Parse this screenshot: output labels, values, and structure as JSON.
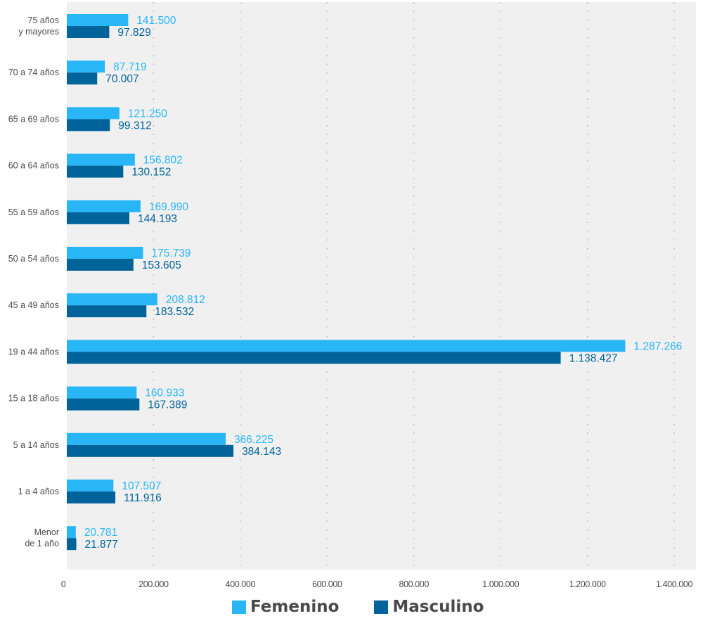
{
  "chart_data": {
    "type": "bar",
    "orientation": "horizontal",
    "title": "",
    "xlabel": "",
    "ylabel": "",
    "categories": [
      "75 años\ny mayores",
      "70 a 74 años",
      "65 a 69 años",
      "60 a 64 años",
      "55 a 59 años",
      "50 a 54 años",
      "45 a 49 años",
      "19 a 44 años",
      "15 a 18 años",
      "5 a 14 años",
      "1 a 4 años",
      "Menor\nde 1 año"
    ],
    "series": [
      {
        "name": "Femenino",
        "color": "#29b6f6",
        "values": [
          141500,
          87719,
          121250,
          156802,
          169990,
          175739,
          208812,
          1287266,
          160933,
          366225,
          107507,
          20781
        ],
        "labels": [
          "141.500",
          "87.719",
          "121.250",
          "156.802",
          "169.990",
          "175.739",
          "208.812",
          "1.287.266",
          "160.933",
          "366.225",
          "107.507",
          "20.781"
        ]
      },
      {
        "name": "Masculino",
        "color": "#00639a",
        "values": [
          97829,
          70007,
          99312,
          130152,
          144193,
          153605,
          183532,
          1138427,
          167389,
          384143,
          111916,
          21877
        ],
        "labels": [
          "97.829",
          "70.007",
          "99.312",
          "130.152",
          "144.193",
          "153.605",
          "183.532",
          "1.138.427",
          "167.389",
          "384.143",
          "111.916",
          "21.877"
        ]
      }
    ],
    "xlim": [
      0,
      1400000
    ],
    "xticks": [
      0,
      200000,
      400000,
      600000,
      800000,
      1000000,
      1200000,
      1400000
    ],
    "xtick_labels": [
      "0",
      "200.000",
      "400.000",
      "600.000",
      "800.000",
      "1.000.000",
      "1.200.000",
      "1.400.000"
    ],
    "grid": "vertical dotted",
    "plot_background": "#f0f0f0",
    "legend_position": "bottom-center"
  },
  "legend": {
    "items": [
      {
        "label": "Femenino",
        "color": "#29b6f6"
      },
      {
        "label": "Masculino",
        "color": "#00639a"
      }
    ]
  }
}
